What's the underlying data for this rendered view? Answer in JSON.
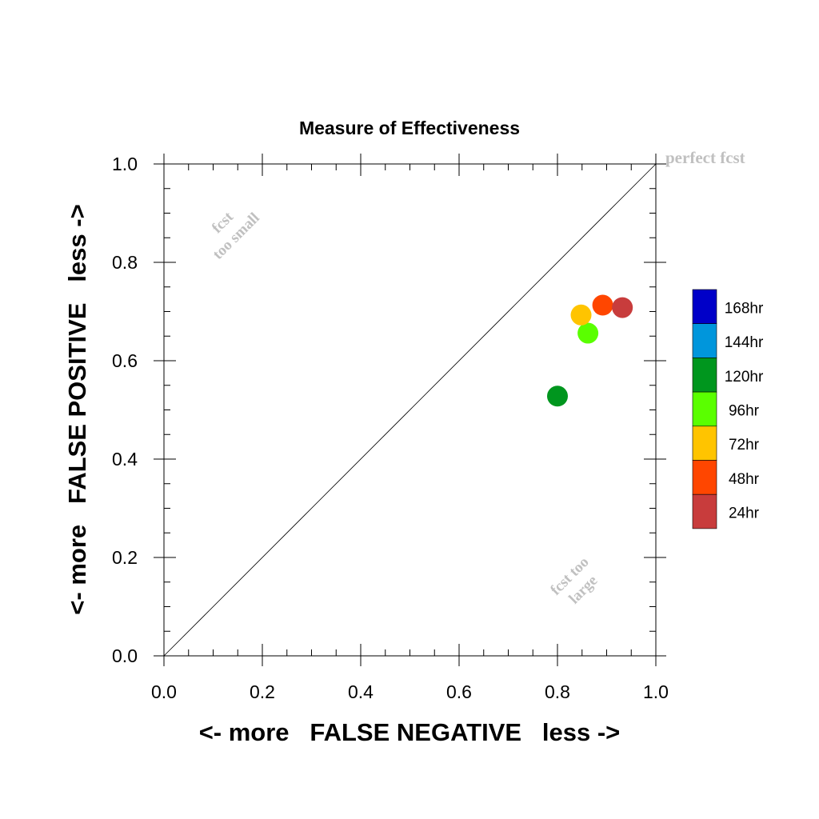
{
  "chart_data": {
    "type": "scatter",
    "title": "Measure of Effectiveness",
    "xlabel": "<- more   FALSE NEGATIVE   less ->",
    "ylabel": "<- more   FALSE POSITIVE   less ->",
    "xlim": [
      0,
      1
    ],
    "ylim": [
      0,
      1
    ],
    "xticks": [
      "0.0",
      "0.2",
      "0.4",
      "0.6",
      "0.8",
      "1.0"
    ],
    "yticks": [
      "0.0",
      "0.2",
      "0.4",
      "0.6",
      "0.8",
      "1.0"
    ],
    "grid": false,
    "legend_placement": "right",
    "annotations": {
      "perfect": "perfect fcst",
      "too_small_line1": "fcst",
      "too_small_line2": "too small",
      "too_large_line1": "fcst too",
      "too_large_line2": "large"
    },
    "series": [
      {
        "name": "168hr",
        "color": "#0000c8",
        "points": []
      },
      {
        "name": "144hr",
        "color": "#0096dc",
        "points": []
      },
      {
        "name": "120hr",
        "color": "#00961e",
        "points": [
          [
            0.8,
            0.528
          ]
        ]
      },
      {
        "name": "96hr",
        "color": "#5aff00",
        "points": [
          [
            0.862,
            0.656
          ]
        ]
      },
      {
        "name": "72hr",
        "color": "#ffc400",
        "points": [
          [
            0.848,
            0.693
          ]
        ]
      },
      {
        "name": "48hr",
        "color": "#ff4600",
        "points": [
          [
            0.892,
            0.713
          ]
        ]
      },
      {
        "name": "24hr",
        "color": "#c83c3c",
        "points": [
          [
            0.932,
            0.708
          ]
        ]
      }
    ]
  }
}
